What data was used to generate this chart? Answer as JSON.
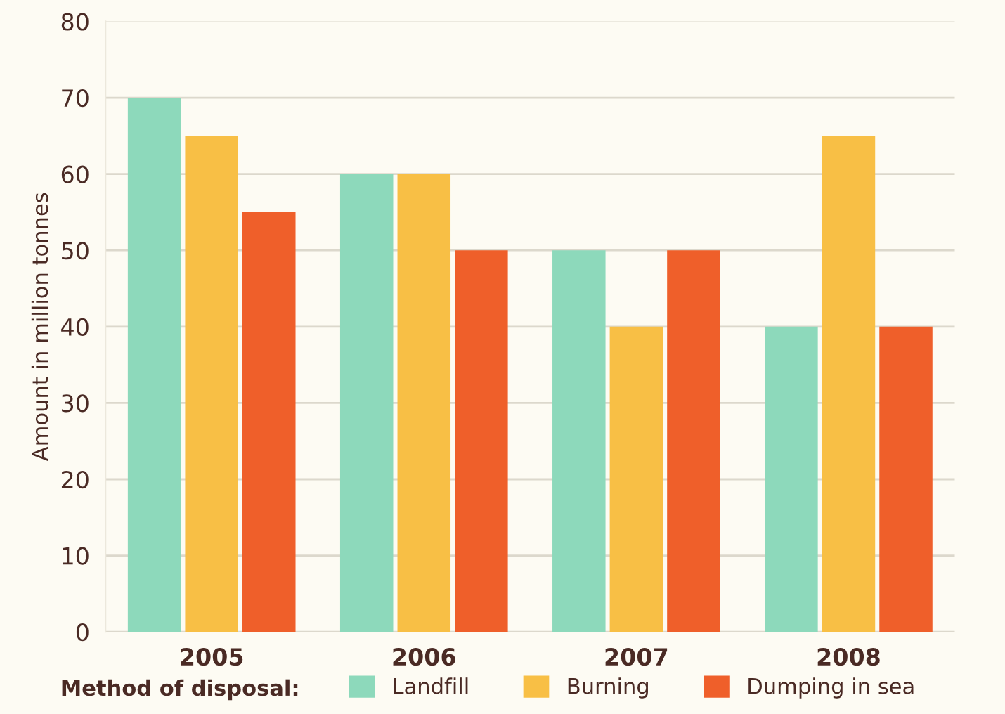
{
  "chart_data": {
    "type": "bar",
    "ylabel": "Amount in million tonnes",
    "legend_title": "Method of disposal:",
    "categories": [
      "2005",
      "2006",
      "2007",
      "2008"
    ],
    "series": [
      {
        "name": "Landfill",
        "color": "#8dd9bb",
        "values": [
          70,
          60,
          50,
          40
        ]
      },
      {
        "name": "Burning",
        "color": "#f8bf45",
        "values": [
          65,
          60,
          40,
          65
        ]
      },
      {
        "name": "Dumping in sea",
        "color": "#ef5f2a",
        "values": [
          55,
          50,
          50,
          40
        ]
      }
    ],
    "ylim": [
      0,
      80
    ],
    "yticks": [
      0,
      10,
      20,
      30,
      40,
      50,
      60,
      70,
      80
    ],
    "grid": "y",
    "legend": "bottom"
  }
}
